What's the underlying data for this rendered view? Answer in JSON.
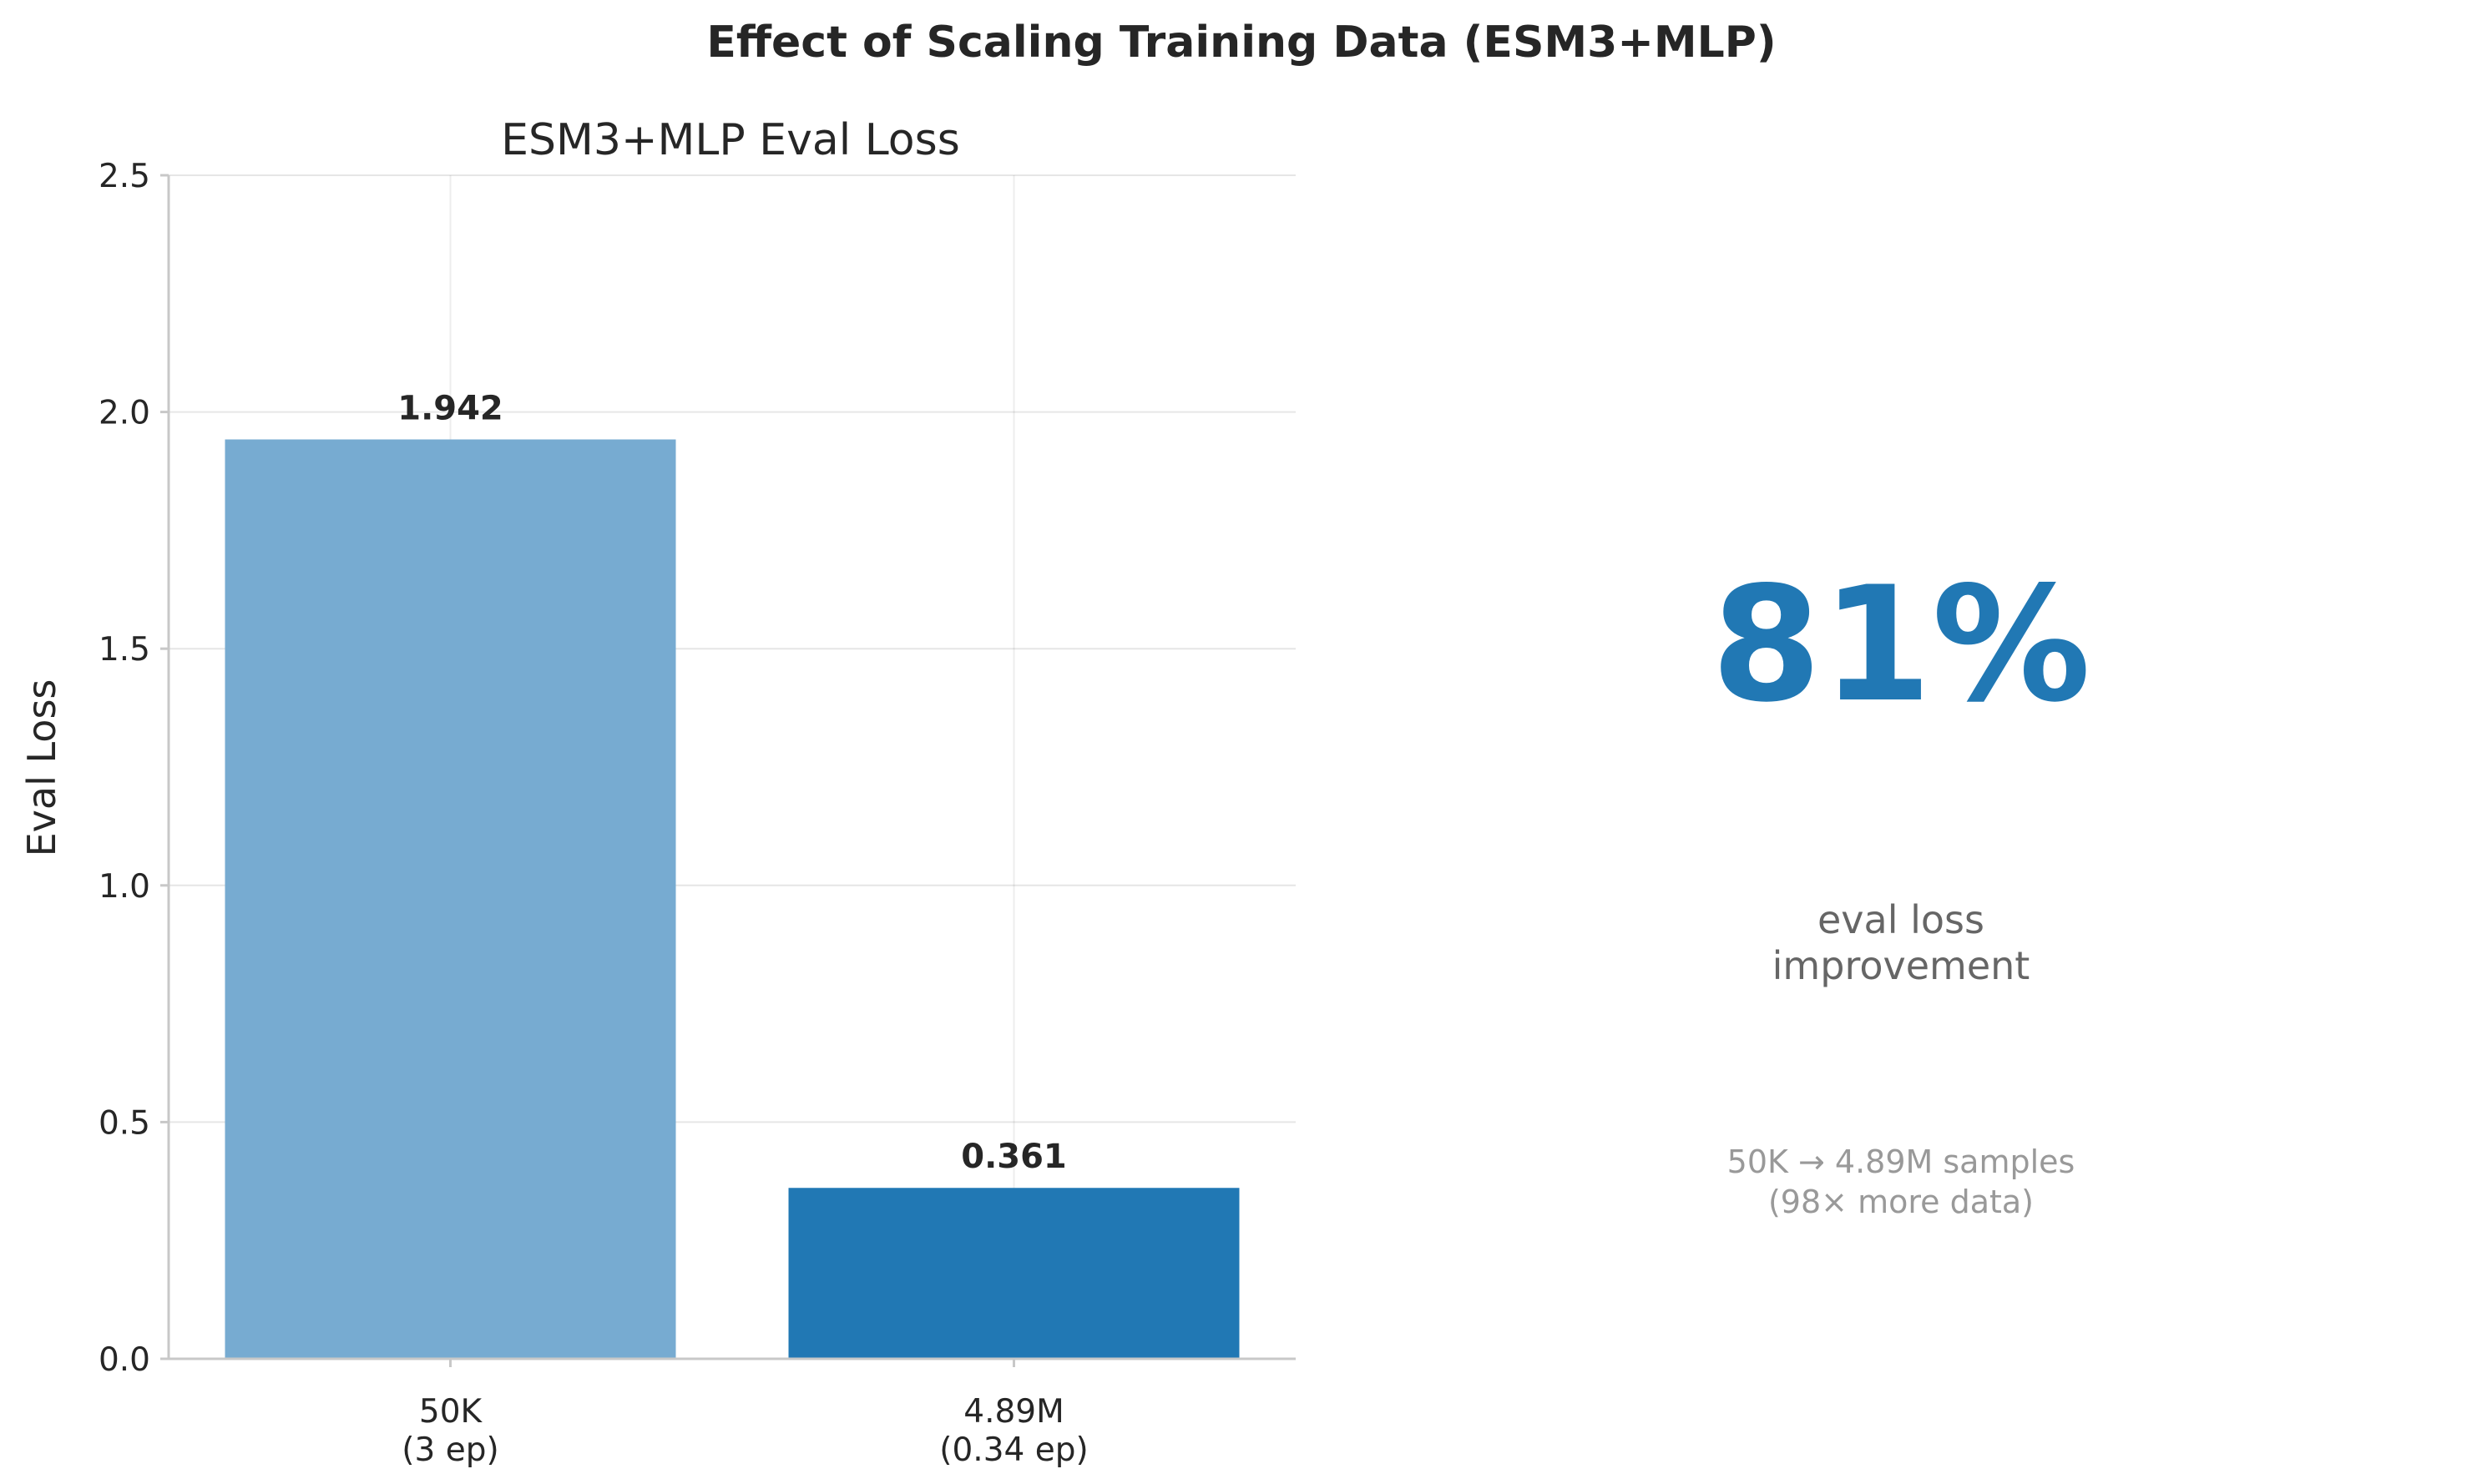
{
  "suptitle": "Effect of Scaling Training Data (ESM3+MLP)",
  "chart_data": {
    "type": "bar",
    "title": "ESM3+MLP Eval Loss",
    "xlabel": "",
    "ylabel": "Eval Loss",
    "ylim": [
      0,
      2.5
    ],
    "yticks": [
      0.0,
      0.5,
      1.0,
      1.5,
      2.0,
      2.5
    ],
    "ytick_labels": [
      "0.0",
      "0.5",
      "1.0",
      "1.5",
      "2.0",
      "2.5"
    ],
    "grid": true,
    "categories": [
      {
        "line1": "50K",
        "line2": "(3 ep)"
      },
      {
        "line1": "4.89M",
        "line2": "(0.34 ep)"
      }
    ],
    "values": [
      1.942,
      0.361
    ],
    "data_labels": [
      "1.942",
      "0.361"
    ],
    "colors": [
      "#77abd1",
      "#2178b4"
    ]
  },
  "stat_panel": {
    "big_value": "81%",
    "big_color": "#2178b4",
    "label_line1": "eval loss",
    "label_line2": "improvement",
    "label_color": "#666666",
    "detail_line1": "50K → 4.89M samples",
    "detail_line2": "(98× more data)",
    "detail_color": "#999999"
  }
}
